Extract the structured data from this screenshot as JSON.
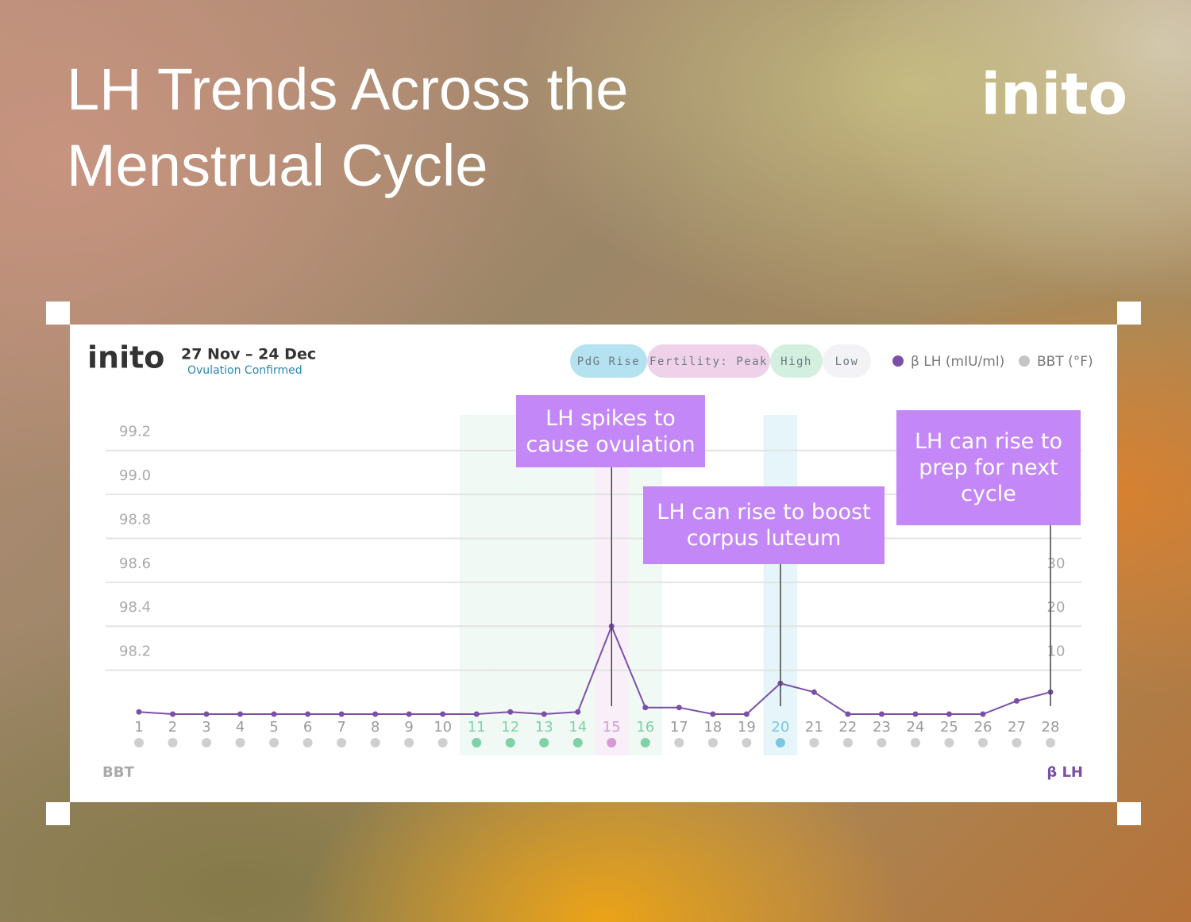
{
  "header": {
    "title": "LH Trends Across the Menstrual Cycle",
    "brand": "inito"
  },
  "card": {
    "brand": "inito",
    "date_range": "27 Nov – 24 Dec",
    "status": "Ovulation Confirmed"
  },
  "chart_data": {
    "type": "line",
    "x": [
      1,
      2,
      3,
      4,
      5,
      6,
      7,
      8,
      9,
      10,
      11,
      12,
      13,
      14,
      15,
      16,
      17,
      18,
      19,
      20,
      21,
      22,
      23,
      24,
      25,
      26,
      27,
      28
    ],
    "xlim": [
      1,
      28
    ],
    "series": [
      {
        "name": "β LH (mIU/ml)",
        "color": "#7b4fa8",
        "axis": "y2",
        "values": [
          0.5,
          0,
          0,
          0,
          0,
          0,
          0,
          0,
          0,
          0,
          0,
          0.5,
          0,
          0.5,
          20,
          1.5,
          1.5,
          0,
          0,
          7,
          5,
          0,
          0,
          0,
          0,
          0,
          3,
          5
        ]
      },
      {
        "name": "BBT (°F)",
        "color": "#c4c4c4",
        "values": [
          null,
          null,
          null,
          null,
          null,
          null,
          null,
          null,
          null,
          null,
          null,
          null,
          null,
          null,
          null,
          null,
          null,
          null,
          null,
          null,
          null,
          null,
          null,
          null,
          null,
          null,
          null,
          null
        ]
      }
    ],
    "ylabel": "BBT",
    "y2label": "β LH",
    "ylim": [
      98.0,
      99.3
    ],
    "yticks": [
      98.2,
      98.4,
      98.6,
      98.8,
      {
        "value": 99.0,
        "label": "99.0"
      },
      99.2
    ],
    "y2lim": [
      0,
      65
    ],
    "y2ticks": [
      10,
      20,
      30
    ],
    "grid": true,
    "phases": [
      {
        "label": "PdG Rise",
        "color": "#b5e2f1",
        "tick_color": "#7cc6e4",
        "days": [
          20
        ]
      },
      {
        "label": "Fertility: Peak",
        "color": "#efd2ea",
        "tick_color": "#d69bd2",
        "days": [
          15
        ]
      },
      {
        "label": "High",
        "color": "#d3efdf",
        "tick_color": "#7fd1a7",
        "days": [
          11,
          12,
          13,
          14,
          16
        ]
      },
      {
        "label": "Low",
        "color": "#f3f3f6",
        "tick_color": "#9b9b9b",
        "days": []
      }
    ],
    "annotations": [
      {
        "text": "LH spikes to cause ovulation",
        "x": 15
      },
      {
        "text": "LH can rise to boost corpus luteum",
        "x": 20
      },
      {
        "text": "LH can rise to prep for next cycle",
        "x": 28
      }
    ]
  }
}
